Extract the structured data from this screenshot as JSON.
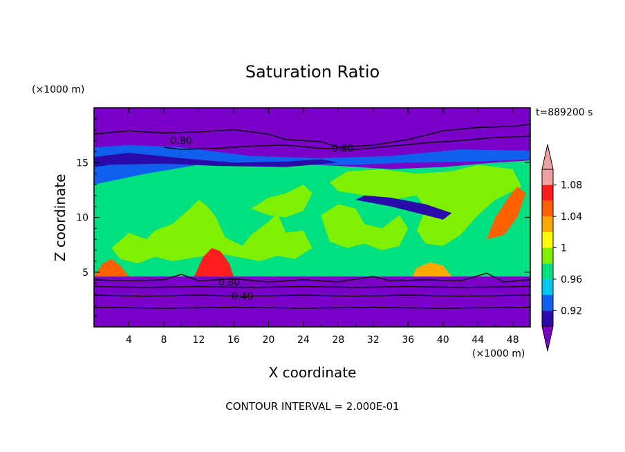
{
  "chart_data": {
    "type": "heatmap",
    "title": "Saturation Ratio",
    "xlabel": "X coordinate",
    "ylabel": "Z coordinate",
    "x_unit": "(×1000 m)",
    "y_unit": "(×1000 m)",
    "time_label": "t=889200 s",
    "footer": "CONTOUR INTERVAL = 2.000E-01",
    "xlim": [
      0,
      50
    ],
    "ylim": [
      0,
      20
    ],
    "x_ticks": [
      4,
      8,
      12,
      16,
      20,
      24,
      28,
      32,
      36,
      40,
      44,
      48
    ],
    "y_ticks": [
      5,
      10,
      15
    ],
    "colorbar": {
      "levels": [
        0.9,
        0.92,
        0.94,
        0.96,
        0.98,
        1.0,
        1.02,
        1.04,
        1.06,
        1.08,
        1.1
      ],
      "tick_labels": [
        {
          "value": 0.92,
          "label": "0.92"
        },
        {
          "value": 0.96,
          "label": "0.96"
        },
        {
          "value": 1.0,
          "label": "1"
        },
        {
          "value": 1.04,
          "label": "1.04"
        },
        {
          "value": 1.08,
          "label": "1.08"
        }
      ],
      "colors": [
        "#7a00c8",
        "#2a0aa8",
        "#1060f0",
        "#00c8f0",
        "#00e080",
        "#7ef000",
        "#ffff00",
        "#ffa800",
        "#ff6000",
        "#ff1e1e",
        "#f0a0a0"
      ],
      "extend": "both"
    },
    "contour_labels": [
      {
        "text": "0.80",
        "x": 10.0,
        "z": 17.0
      },
      {
        "text": "0.80",
        "x": 28.5,
        "z": 16.3
      },
      {
        "text": "0.80",
        "x": 15.5,
        "z": 4.1
      },
      {
        "text": "0.40",
        "x": 17.0,
        "z": 2.8
      }
    ],
    "contour_lines": [
      {
        "level": 0.8,
        "points": [
          [
            0,
            17.6
          ],
          [
            4,
            17.9
          ],
          [
            8,
            17.7
          ],
          [
            12,
            17.8
          ],
          [
            16,
            18.0
          ],
          [
            20,
            17.6
          ],
          [
            22,
            17.1
          ],
          [
            26,
            16.9
          ],
          [
            28,
            16.4
          ],
          [
            32,
            16.6
          ],
          [
            36,
            17.1
          ],
          [
            40,
            17.9
          ],
          [
            44,
            18.2
          ],
          [
            48,
            18.3
          ],
          [
            50,
            18.5
          ]
        ]
      },
      {
        "level": 0.8,
        "points": [
          [
            8,
            16.4
          ],
          [
            10,
            16.2
          ],
          [
            14,
            16.3
          ],
          [
            18,
            16.5
          ],
          [
            22,
            16.6
          ],
          [
            26,
            16.3
          ],
          [
            30,
            16.2
          ],
          [
            34,
            16.5
          ],
          [
            38,
            16.8
          ],
          [
            42,
            17.0
          ],
          [
            46,
            17.3
          ],
          [
            50,
            17.4
          ]
        ]
      },
      {
        "level": 0.8,
        "points": [
          [
            0,
            4.3
          ],
          [
            4,
            4.2
          ],
          [
            8,
            4.3
          ],
          [
            10,
            4.8
          ],
          [
            12,
            4.2
          ],
          [
            16,
            4.4
          ],
          [
            20,
            4.1
          ],
          [
            24,
            4.3
          ],
          [
            28,
            4.1
          ],
          [
            32,
            4.6
          ],
          [
            34,
            4.2
          ],
          [
            38,
            4.3
          ],
          [
            42,
            4.2
          ],
          [
            45,
            4.9
          ],
          [
            47,
            4.1
          ],
          [
            50,
            4.3
          ]
        ]
      },
      {
        "level": 0.6,
        "points": [
          [
            0,
            3.7
          ],
          [
            6,
            3.6
          ],
          [
            12,
            3.7
          ],
          [
            18,
            3.6
          ],
          [
            24,
            3.7
          ],
          [
            30,
            3.6
          ],
          [
            36,
            3.7
          ],
          [
            42,
            3.6
          ],
          [
            50,
            3.7
          ]
        ]
      },
      {
        "level": 0.4,
        "points": [
          [
            0,
            2.9
          ],
          [
            6,
            2.8
          ],
          [
            12,
            2.9
          ],
          [
            17,
            2.8
          ],
          [
            24,
            2.9
          ],
          [
            30,
            2.8
          ],
          [
            36,
            2.9
          ],
          [
            42,
            2.8
          ],
          [
            50,
            2.9
          ]
        ]
      },
      {
        "level": 0.2,
        "points": [
          [
            0,
            1.8
          ],
          [
            8,
            1.7
          ],
          [
            16,
            1.8
          ],
          [
            24,
            1.7
          ],
          [
            32,
            1.8
          ],
          [
            40,
            1.7
          ],
          [
            50,
            1.8
          ]
        ]
      }
    ],
    "regions": [
      {
        "description_value": 0.9,
        "points": [
          [
            0,
            0
          ],
          [
            50,
            0
          ],
          [
            50,
            20
          ],
          [
            0,
            20
          ]
        ]
      },
      {
        "description_value": 0.98,
        "points": [
          [
            0,
            4.6
          ],
          [
            50,
            4.6
          ],
          [
            50,
            15.2
          ],
          [
            46,
            15.0
          ],
          [
            40,
            14.6
          ],
          [
            34,
            14.4
          ],
          [
            28,
            14.7
          ],
          [
            22,
            14.9
          ],
          [
            16,
            15.2
          ],
          [
            10,
            15.6
          ],
          [
            6,
            15.9
          ],
          [
            3,
            16.2
          ],
          [
            0,
            16.4
          ]
        ]
      },
      {
        "description_value": 0.94,
        "points": [
          [
            0,
            13.0
          ],
          [
            6,
            14.0
          ],
          [
            12,
            14.8
          ],
          [
            18,
            15.0
          ],
          [
            24,
            14.8
          ],
          [
            30,
            14.8
          ],
          [
            36,
            15.0
          ],
          [
            44,
            15.1
          ],
          [
            50,
            15.3
          ],
          [
            50,
            16.1
          ],
          [
            42,
            16.2
          ],
          [
            34,
            15.6
          ],
          [
            26,
            15.4
          ],
          [
            18,
            15.6
          ],
          [
            10,
            16.4
          ],
          [
            4,
            16.6
          ],
          [
            0,
            16.4
          ]
        ]
      },
      {
        "description_value": 1.0,
        "points": [
          [
            2,
            7.2
          ],
          [
            4,
            8.6
          ],
          [
            6,
            8.0
          ],
          [
            7,
            8.8
          ],
          [
            9,
            9.4
          ],
          [
            11,
            10.8
          ],
          [
            12,
            11.6
          ],
          [
            13,
            11.0
          ],
          [
            14,
            10.0
          ],
          [
            15,
            8.2
          ],
          [
            17,
            7.4
          ],
          [
            18,
            8.4
          ],
          [
            20,
            9.6
          ],
          [
            21,
            10.4
          ],
          [
            22,
            8.6
          ],
          [
            24,
            8.8
          ],
          [
            25,
            7.2
          ],
          [
            23,
            6.2
          ],
          [
            21,
            6.5
          ],
          [
            19,
            6.0
          ],
          [
            17,
            6.3
          ],
          [
            15,
            6.6
          ],
          [
            12,
            6.4
          ],
          [
            9,
            6.0
          ],
          [
            7,
            6.4
          ],
          [
            5,
            5.8
          ],
          [
            3,
            6.2
          ]
        ]
      },
      {
        "description_value": 1.0,
        "points": [
          [
            18,
            10.8
          ],
          [
            20,
            11.8
          ],
          [
            22,
            12.2
          ],
          [
            24,
            13.0
          ],
          [
            25,
            12.2
          ],
          [
            24,
            10.6
          ],
          [
            22,
            10.0
          ],
          [
            20,
            10.2
          ]
        ]
      },
      {
        "description_value": 1.0,
        "points": [
          [
            26,
            10.2
          ],
          [
            28,
            11.2
          ],
          [
            30,
            10.8
          ],
          [
            31,
            9.4
          ],
          [
            33,
            9.0
          ],
          [
            35,
            10.2
          ],
          [
            36,
            9.0
          ],
          [
            35,
            7.4
          ],
          [
            33,
            7.0
          ],
          [
            31,
            7.6
          ],
          [
            29,
            7.2
          ],
          [
            27,
            7.8
          ]
        ]
      },
      {
        "description_value": 1.0,
        "points": [
          [
            27,
            13.2
          ],
          [
            29,
            14.2
          ],
          [
            33,
            14.4
          ],
          [
            37,
            14.0
          ],
          [
            41,
            14.2
          ],
          [
            44,
            14.8
          ],
          [
            48,
            14.4
          ],
          [
            49,
            12.8
          ],
          [
            46,
            11.6
          ],
          [
            44,
            10.2
          ],
          [
            42,
            8.4
          ],
          [
            40,
            7.4
          ],
          [
            38,
            7.6
          ],
          [
            37,
            8.8
          ],
          [
            38,
            10.8
          ],
          [
            37,
            12.0
          ],
          [
            34,
            11.6
          ],
          [
            31,
            12.0
          ],
          [
            28,
            12.4
          ]
        ]
      },
      {
        "description_value": 0.92,
        "points": [
          [
            30,
            11.6
          ],
          [
            34,
            11.0
          ],
          [
            38,
            10.2
          ],
          [
            40,
            9.8
          ],
          [
            41,
            10.4
          ],
          [
            38,
            11.2
          ],
          [
            34,
            11.8
          ],
          [
            31,
            12.0
          ]
        ]
      },
      {
        "description_value": 0.92,
        "points": [
          [
            0,
            15.5
          ],
          [
            4,
            15.9
          ],
          [
            10,
            15.4
          ],
          [
            16,
            15.0
          ],
          [
            22,
            15.1
          ],
          [
            26,
            15.3
          ],
          [
            28,
            15.0
          ],
          [
            22,
            14.6
          ],
          [
            14,
            14.7
          ],
          [
            8,
            14.9
          ],
          [
            2,
            14.8
          ],
          [
            0,
            14.6
          ]
        ]
      },
      {
        "description_value": 1.06,
        "points": [
          [
            0,
            4.6
          ],
          [
            1,
            5.8
          ],
          [
            2,
            6.2
          ],
          [
            3,
            5.6
          ],
          [
            4,
            4.6
          ]
        ]
      },
      {
        "description_value": 1.08,
        "points": [
          [
            11.5,
            4.6
          ],
          [
            12.5,
            6.4
          ],
          [
            13.5,
            7.2
          ],
          [
            14.5,
            6.9
          ],
          [
            15.5,
            5.8
          ],
          [
            16,
            4.6
          ]
        ]
      },
      {
        "description_value": 1.04,
        "points": [
          [
            36.5,
            4.6
          ],
          [
            37,
            5.4
          ],
          [
            38.5,
            5.9
          ],
          [
            40,
            5.6
          ],
          [
            41,
            4.6
          ]
        ]
      },
      {
        "description_value": 1.06,
        "points": [
          [
            45,
            8.0
          ],
          [
            46,
            10.0
          ],
          [
            47.5,
            11.8
          ],
          [
            48.5,
            12.8
          ],
          [
            49.5,
            12.2
          ],
          [
            48.5,
            10.0
          ],
          [
            47,
            8.4
          ]
        ]
      }
    ]
  }
}
